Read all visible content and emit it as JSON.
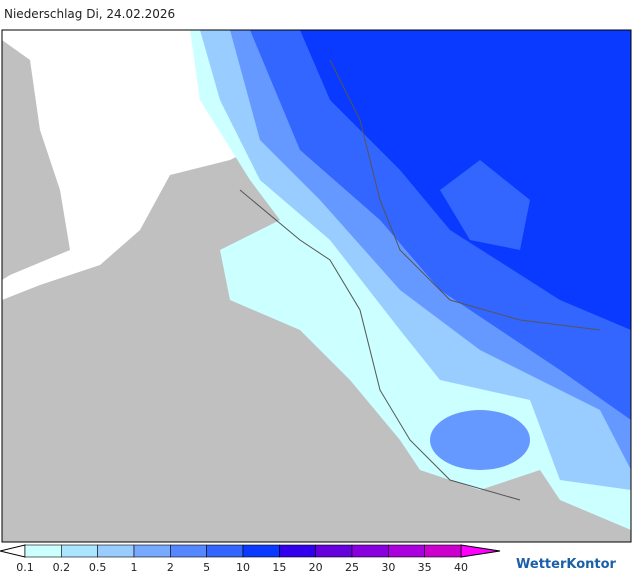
{
  "header": {
    "title": "Niederschlag Di, 24.02.2026"
  },
  "legend": {
    "labels": [
      "0.1",
      "0.2",
      "0.5",
      "1",
      "2",
      "5",
      "10",
      "15",
      "20",
      "25",
      "30",
      "35",
      "40"
    ]
  },
  "brand": {
    "name": "WetterKontor"
  }
}
